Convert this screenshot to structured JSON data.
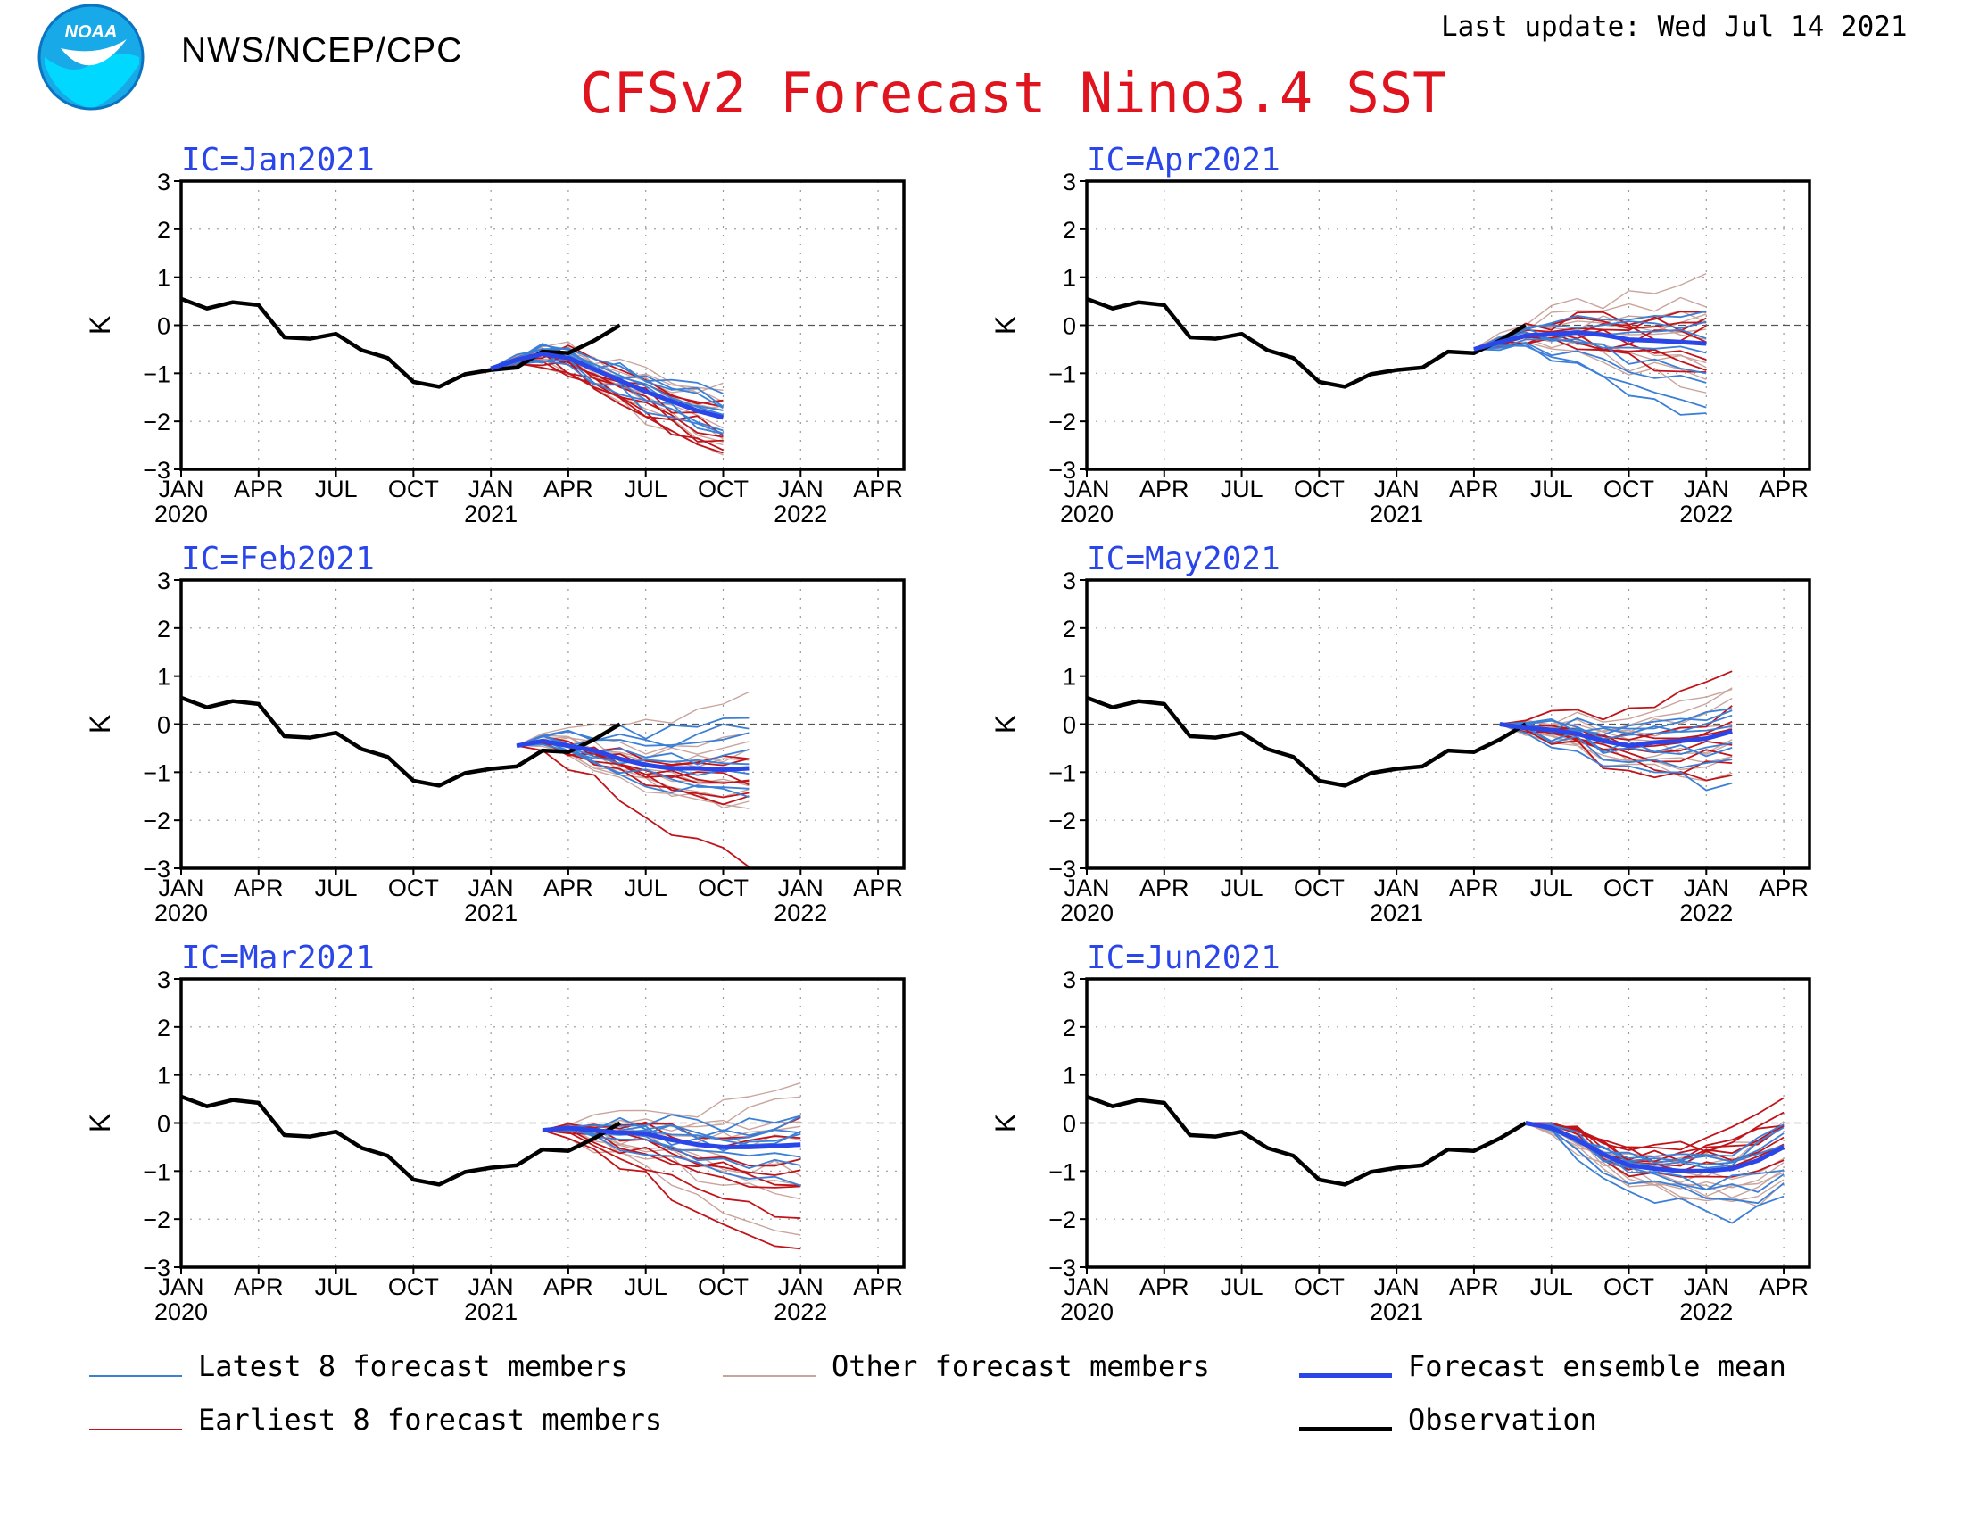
{
  "header": {
    "org": "NWS/NCEP/CPC",
    "last_update": "Last update: Wed Jul 14 2021",
    "title": "CFSv2 Forecast Nino3.4 SST",
    "logo_text": "NOAA"
  },
  "colors": {
    "latest": "#3b7fd6",
    "earliest": "#c0141a",
    "other": "#c9a49d",
    "mean": "#2a45e8",
    "observation": "#000000",
    "title": "#e0141e",
    "ic_label": "#2a45e8"
  },
  "legend": {
    "latest": "Latest 8 forecast members",
    "other": "Other forecast members",
    "mean": "Forecast ensemble mean",
    "earliest": "Earliest 8 forecast members",
    "observation": "Observation"
  },
  "chart_data": {
    "type": "line",
    "ylabel": "K",
    "ylim": [
      -3,
      3
    ],
    "yticks": [
      "3",
      "2",
      "1",
      "0",
      "−1",
      "−2",
      "−3"
    ],
    "x_start": "Jan 2020",
    "x_months": 28,
    "x_ticks": [
      {
        "month": 0,
        "label": "JAN",
        "year": "2020"
      },
      {
        "month": 3,
        "label": "APR",
        "year": ""
      },
      {
        "month": 6,
        "label": "JUL",
        "year": ""
      },
      {
        "month": 9,
        "label": "OCT",
        "year": ""
      },
      {
        "month": 12,
        "label": "JAN",
        "year": "2021"
      },
      {
        "month": 15,
        "label": "APR",
        "year": ""
      },
      {
        "month": 18,
        "label": "JUL",
        "year": ""
      },
      {
        "month": 21,
        "label": "OCT",
        "year": ""
      },
      {
        "month": 24,
        "label": "JAN",
        "year": "2022"
      },
      {
        "month": 27,
        "label": "APR",
        "year": ""
      }
    ],
    "observation": {
      "name": "Observation",
      "start_month": 0,
      "values": [
        0.55,
        0.35,
        0.48,
        0.42,
        -0.25,
        -0.28,
        -0.18,
        -0.52,
        -0.68,
        -1.18,
        -1.28,
        -1.02,
        -0.93,
        -0.88,
        -0.55,
        -0.58,
        -0.32,
        0.0
      ]
    },
    "panels": [
      {
        "ic": "IC=Jan2021",
        "mean": {
          "start_month": 12,
          "values": [
            -0.9,
            -0.72,
            -0.6,
            -0.68,
            -0.92,
            -1.15,
            -1.38,
            -1.58,
            -1.78,
            -1.92
          ]
        },
        "latest_offsets": [
          0.15,
          -0.1,
          0.35,
          -0.25,
          0.55,
          0.05,
          -0.4,
          0.25
        ],
        "earliest_offsets": [
          -0.3,
          -0.6,
          0.1,
          -0.45,
          -0.8,
          -0.15,
          0.3,
          -0.7
        ],
        "other_offsets": [
          0.4,
          -0.2,
          -0.5,
          0.2,
          -0.9,
          0.6,
          -0.35,
          0.1,
          -0.65,
          0.45
        ]
      },
      {
        "ic": "IC=Feb2021",
        "mean": {
          "start_month": 13,
          "values": [
            -0.45,
            -0.35,
            -0.45,
            -0.55,
            -0.72,
            -0.85,
            -0.92,
            -0.92,
            -0.95,
            -0.92
          ]
        },
        "latest_offsets": [
          0.3,
          -0.15,
          0.6,
          -0.35,
          0.9,
          0.1,
          -0.55,
          1.2
        ],
        "earliest_offsets": [
          -0.25,
          -0.5,
          0.15,
          -0.4,
          -1.9,
          -0.2,
          0.25,
          -0.75
        ],
        "other_offsets": [
          0.5,
          -0.3,
          -0.6,
          0.25,
          -0.8,
          0.7,
          -0.4,
          0.15,
          -0.7,
          1.5
        ]
      },
      {
        "ic": "IC=Mar2021",
        "mean": {
          "start_month": 14,
          "values": [
            -0.15,
            -0.1,
            -0.15,
            -0.2,
            -0.22,
            -0.35,
            -0.45,
            -0.5,
            -0.5,
            -0.48,
            -0.45
          ]
        },
        "latest_offsets": [
          0.25,
          -0.2,
          0.5,
          -0.4,
          0.7,
          0.05,
          -0.85,
          0.35
        ],
        "earliest_offsets": [
          -0.3,
          -0.7,
          0.2,
          -0.55,
          -2.3,
          -1.5,
          0.4,
          -0.9
        ],
        "other_offsets": [
          0.6,
          -0.35,
          -0.7,
          0.3,
          -1.0,
          0.9,
          -0.5,
          0.2,
          -1.9,
          1.2
        ]
      },
      {
        "ic": "IC=Apr2021",
        "mean": {
          "start_month": 15,
          "values": [
            -0.5,
            -0.35,
            -0.22,
            -0.18,
            -0.15,
            -0.2,
            -0.3,
            -0.32,
            -0.35,
            -0.38
          ]
        },
        "latest_offsets": [
          -1.55,
          0.35,
          -1.3,
          0.15,
          -0.5,
          0.55,
          -0.9,
          -0.2
        ],
        "earliest_offsets": [
          0.2,
          0.45,
          -0.25,
          0.7,
          -0.6,
          0.1,
          0.35,
          -0.45
        ],
        "other_offsets": [
          0.6,
          -0.35,
          1.3,
          0.25,
          -0.75,
          0.9,
          -0.5,
          0.15,
          -0.9,
          0.45
        ]
      },
      {
        "ic": "IC=May2021",
        "mean": {
          "start_month": 16,
          "values": [
            0.0,
            -0.08,
            -0.12,
            -0.2,
            -0.35,
            -0.45,
            -0.38,
            -0.35,
            -0.3,
            -0.15
          ]
        },
        "latest_offsets": [
          0.4,
          -0.3,
          0.55,
          -1.05,
          0.25,
          -0.6,
          0.5,
          -0.15
        ],
        "earliest_offsets": [
          1.35,
          -0.45,
          0.2,
          -0.7,
          0.45,
          -0.25,
          -0.9,
          0.1
        ],
        "other_offsets": [
          0.6,
          -0.4,
          0.9,
          -0.9,
          0.3,
          -0.65,
          0.15,
          -0.2,
          0.75,
          -0.55
        ]
      },
      {
        "ic": "IC=Jun2021",
        "mean": {
          "start_month": 17,
          "values": [
            0.0,
            -0.1,
            -0.35,
            -0.65,
            -0.88,
            -0.95,
            -1.0,
            -1.0,
            -0.95,
            -0.78,
            -0.5
          ]
        },
        "latest_offsets": [
          -1.2,
          0.3,
          -0.8,
          0.45,
          -0.35,
          0.1,
          -0.55,
          0.25
        ],
        "earliest_offsets": [
          0.9,
          0.6,
          0.45,
          0.75,
          0.2,
          0.55,
          -0.25,
          0.35
        ],
        "other_offsets": [
          -0.6,
          -0.9,
          0.3,
          -0.4,
          -0.75,
          0.5,
          -0.2,
          0.15,
          -0.5,
          0.05
        ]
      }
    ]
  }
}
